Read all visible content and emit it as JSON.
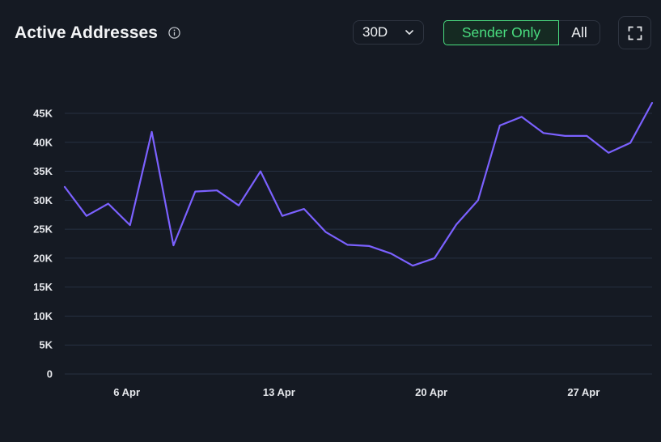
{
  "header": {
    "title": "Active Addresses",
    "info_icon": "info-circle-icon",
    "range_label": "30D",
    "range_icon": "chevron-down-icon",
    "toggle_active": "Sender Only",
    "toggle_inactive": "All",
    "fullscreen_icon": "fullscreen-icon"
  },
  "colors": {
    "background": "#151a23",
    "line": "#7b61ff",
    "accent": "#4ade80",
    "grid": "#263042"
  },
  "chart_data": {
    "type": "line",
    "title": "Active Addresses",
    "xlabel": "",
    "ylabel": "",
    "x_tick_labels": [
      "6 Apr",
      "13 Apr",
      "20 Apr",
      "27 Apr"
    ],
    "x_tick_indices": [
      3,
      10,
      17,
      24
    ],
    "y_tick_labels": [
      "0",
      "5K",
      "10K",
      "15K",
      "20K",
      "25K",
      "30K",
      "35K",
      "40K",
      "45K"
    ],
    "y_tick_values": [
      0,
      5000,
      10000,
      15000,
      20000,
      25000,
      30000,
      35000,
      40000,
      45000
    ],
    "ylim": [
      0,
      47000
    ],
    "grid": true,
    "legend": "none",
    "series": [
      {
        "values": [
          32300,
          27300,
          29400,
          25700,
          41800,
          22200,
          31500,
          31700,
          29100,
          35000,
          27300,
          28500,
          24500,
          22300,
          22100,
          20800,
          18700,
          20000,
          25800,
          30000,
          42900,
          44400,
          41600,
          41100,
          41100,
          38200,
          39900,
          46800
        ]
      }
    ]
  }
}
